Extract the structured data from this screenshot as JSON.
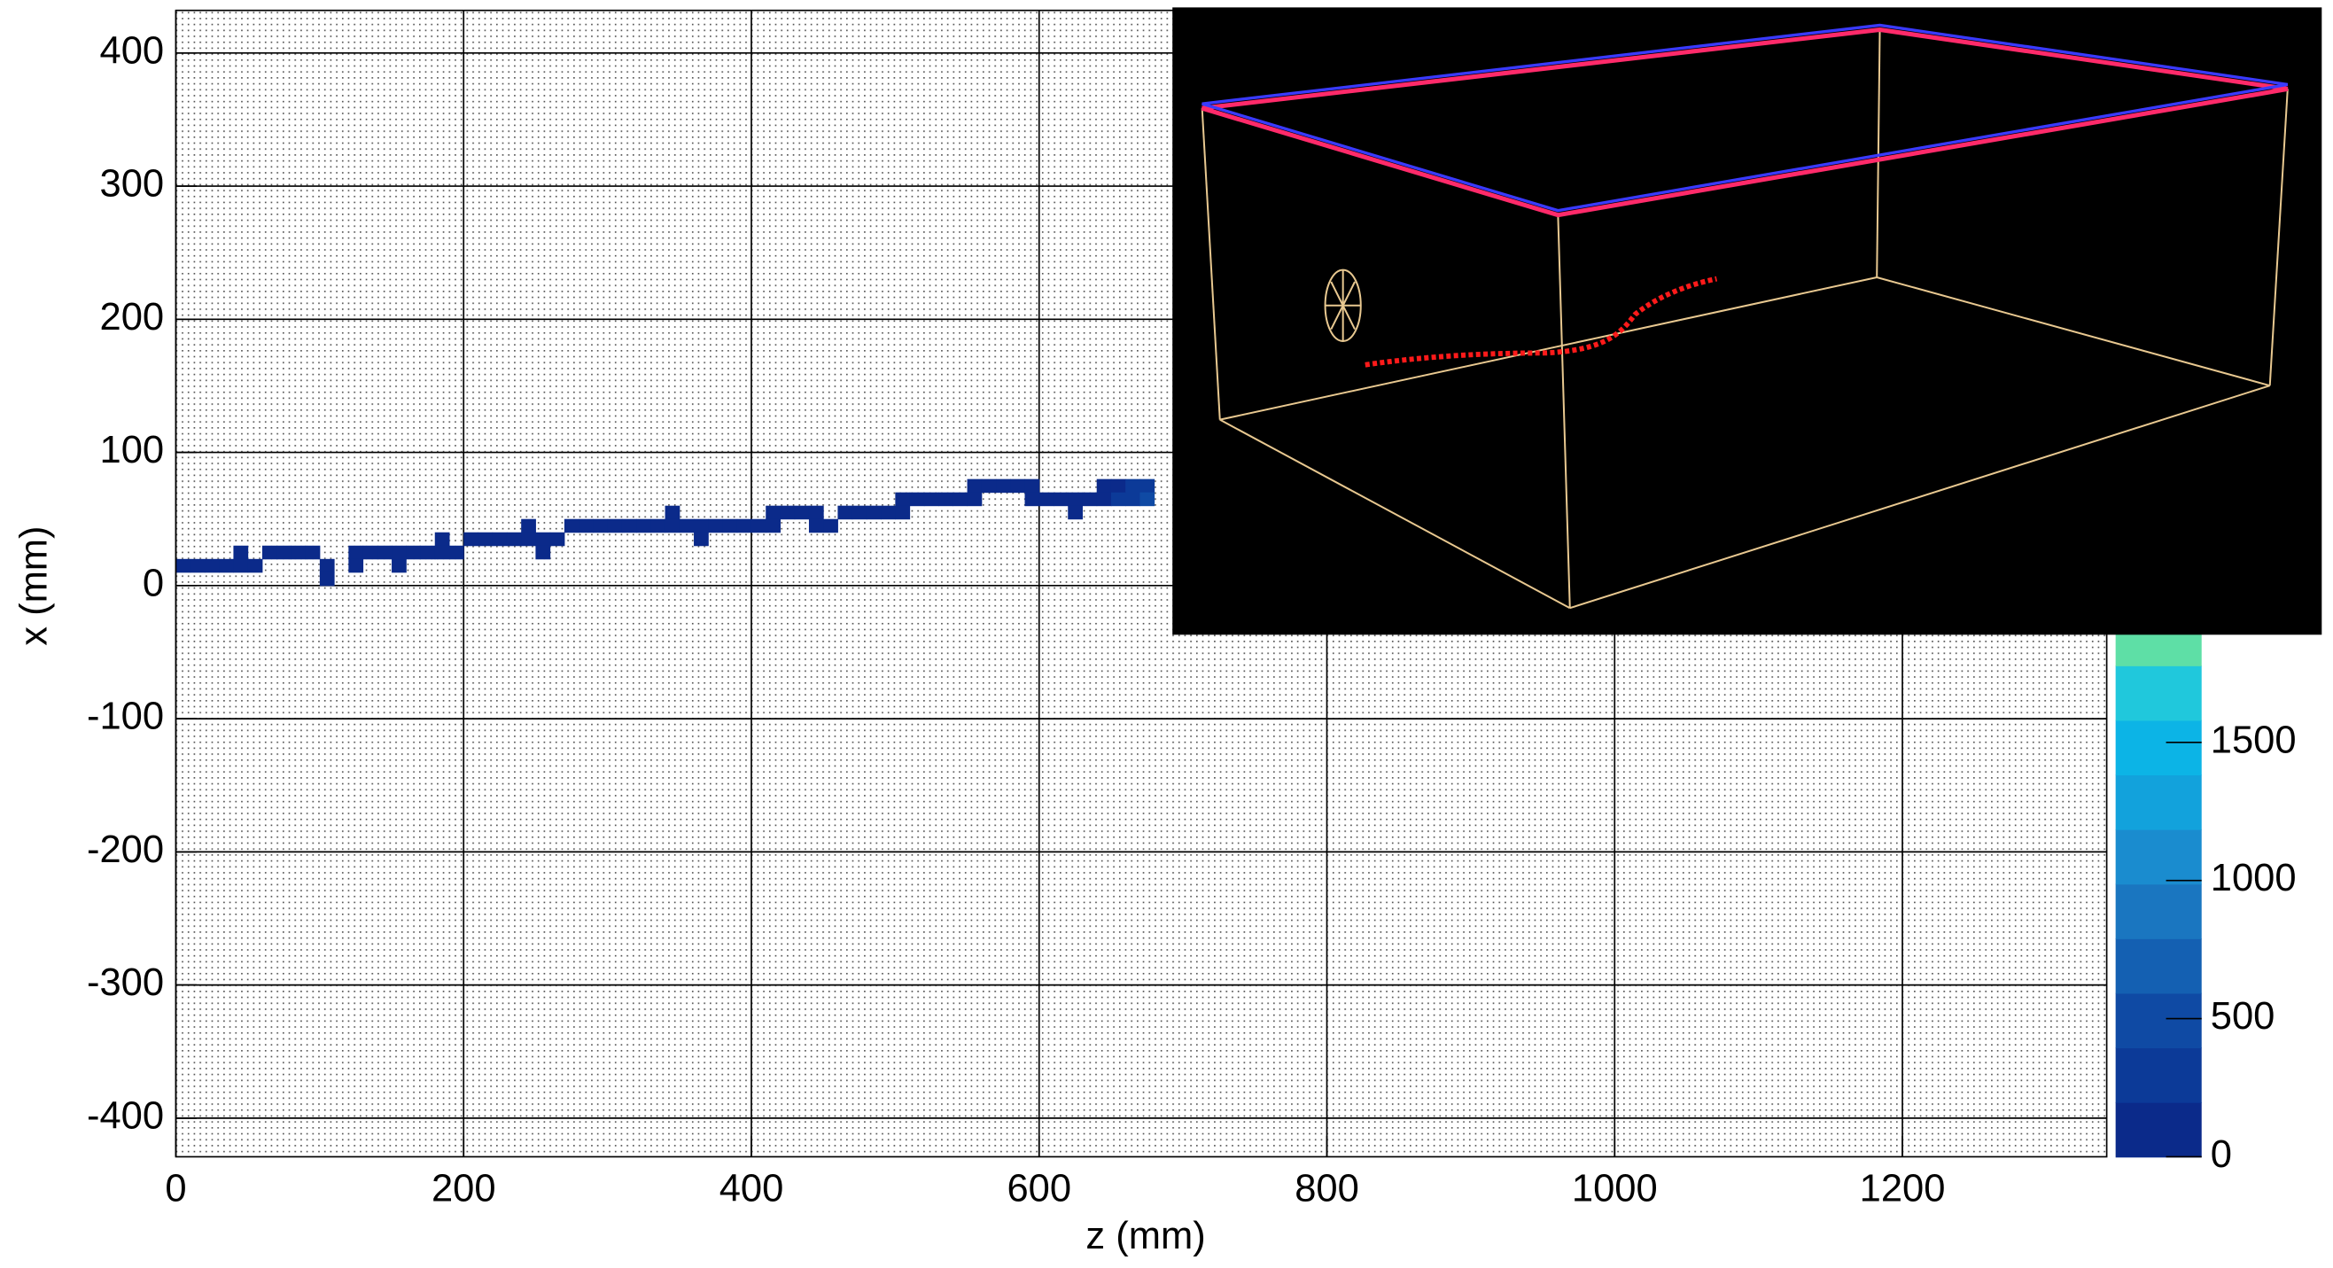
{
  "chart_data": {
    "type": "heatmap",
    "xlabel": "z (mm)",
    "ylabel": "x (mm)",
    "xlim": [
      0,
      1342
    ],
    "ylim": [
      -429,
      432
    ],
    "zlim": [
      0,
      4150
    ],
    "xticks": [
      0,
      200,
      400,
      600,
      800,
      1000,
      1200
    ],
    "yticks": [
      -400,
      -300,
      -200,
      -100,
      0,
      100,
      200,
      300,
      400
    ],
    "zticks": [
      0,
      500,
      1000,
      1500
    ],
    "grid": true,
    "palette": [
      "#0b2a8a",
      "#0c3a98",
      "#0f4aa4",
      "#1460b2",
      "#1a76c0",
      "#1a8ccf",
      "#12a2dc",
      "#0cb4e6",
      "#20c8dc",
      "#5edfa6",
      "#8ae48c",
      "#aee47a",
      "#cbe06c",
      "#dedb62",
      "#ecd35a",
      "#f5c652",
      "#f8b64c",
      "#f7a446",
      "#f5923f",
      "#f27f38",
      "#ee6a30"
    ],
    "cells": [
      [
        0,
        10,
        120
      ],
      [
        10,
        10,
        150
      ],
      [
        20,
        10,
        90
      ],
      [
        30,
        10,
        130
      ],
      [
        40,
        20,
        80
      ],
      [
        40,
        10,
        160
      ],
      [
        50,
        10,
        110
      ],
      [
        60,
        20,
        140
      ],
      [
        70,
        20,
        100
      ],
      [
        80,
        20,
        170
      ],
      [
        90,
        20,
        120
      ],
      [
        100,
        10,
        90
      ],
      [
        100,
        0,
        60
      ],
      [
        120,
        20,
        110
      ],
      [
        120,
        10,
        70
      ],
      [
        130,
        20,
        150
      ],
      [
        140,
        20,
        130
      ],
      [
        150,
        10,
        80
      ],
      [
        150,
        20,
        100
      ],
      [
        160,
        20,
        140
      ],
      [
        170,
        20,
        160
      ],
      [
        180,
        30,
        90
      ],
      [
        180,
        20,
        120
      ],
      [
        190,
        20,
        110
      ],
      [
        200,
        30,
        170
      ],
      [
        210,
        30,
        130
      ],
      [
        220,
        30,
        150
      ],
      [
        230,
        30,
        100
      ],
      [
        240,
        40,
        80
      ],
      [
        240,
        30,
        140
      ],
      [
        250,
        30,
        120
      ],
      [
        250,
        20,
        70
      ],
      [
        260,
        30,
        160
      ],
      [
        270,
        40,
        180
      ],
      [
        280,
        40,
        130
      ],
      [
        290,
        40,
        150
      ],
      [
        300,
        40,
        170
      ],
      [
        310,
        40,
        110
      ],
      [
        320,
        40,
        140
      ],
      [
        330,
        40,
        190
      ],
      [
        340,
        50,
        90
      ],
      [
        340,
        40,
        160
      ],
      [
        350,
        40,
        120
      ],
      [
        360,
        40,
        100
      ],
      [
        360,
        30,
        70
      ],
      [
        370,
        40,
        150
      ],
      [
        380,
        40,
        130
      ],
      [
        390,
        40,
        110
      ],
      [
        400,
        40,
        170
      ],
      [
        410,
        50,
        120
      ],
      [
        410,
        40,
        90
      ],
      [
        420,
        50,
        160
      ],
      [
        430,
        50,
        140
      ],
      [
        440,
        50,
        100
      ],
      [
        440,
        40,
        80
      ],
      [
        450,
        40,
        130
      ],
      [
        460,
        50,
        150
      ],
      [
        470,
        50,
        110
      ],
      [
        480,
        50,
        170
      ],
      [
        490,
        50,
        130
      ],
      [
        500,
        60,
        120
      ],
      [
        500,
        50,
        90
      ],
      [
        510,
        60,
        160
      ],
      [
        520,
        60,
        140
      ],
      [
        530,
        60,
        100
      ],
      [
        540,
        60,
        180
      ],
      [
        550,
        70,
        120
      ],
      [
        550,
        60,
        150
      ],
      [
        560,
        70,
        160
      ],
      [
        570,
        70,
        130
      ],
      [
        580,
        70,
        110
      ],
      [
        590,
        70,
        170
      ],
      [
        590,
        60,
        90
      ],
      [
        600,
        60,
        140
      ],
      [
        610,
        60,
        120
      ],
      [
        620,
        60,
        150
      ],
      [
        620,
        50,
        80
      ],
      [
        630,
        60,
        130
      ],
      [
        640,
        70,
        160
      ],
      [
        640,
        60,
        190
      ],
      [
        650,
        70,
        140
      ],
      [
        650,
        60,
        210
      ],
      [
        660,
        70,
        380
      ],
      [
        660,
        60,
        300
      ],
      [
        670,
        70,
        260
      ],
      [
        670,
        60,
        420
      ]
    ]
  }
}
